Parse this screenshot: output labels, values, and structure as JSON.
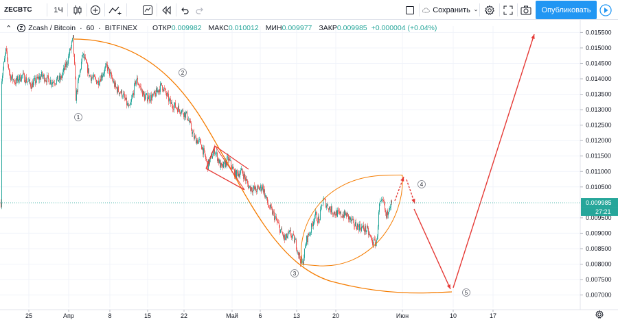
{
  "toolbar": {
    "symbol": "ZECBTC",
    "interval": "1Ч",
    "save_label": "Сохранить",
    "publish_label": "Опубликовать"
  },
  "legend": {
    "symbol_full": "Zcash / Bitcoin",
    "interval": "60",
    "exchange": "BITFINEX",
    "open_label": "ОТКР",
    "open": "0.009982",
    "high_label": "МАКС",
    "high": "0.010012",
    "low_label": "МИН",
    "low": "0.009977",
    "close_label": "ЗАКР",
    "close": "0.009985",
    "change": "+0.000004 (+0.04%)"
  },
  "price_axis": {
    "ticks": [
      "0.015500",
      "0.015000",
      "0.014500",
      "0.014000",
      "0.013500",
      "0.013000",
      "0.012500",
      "0.012000",
      "0.011500",
      "0.011000",
      "0.010500",
      "0.009500",
      "0.009000",
      "0.008500",
      "0.008000",
      "0.007500",
      "0.007000"
    ],
    "current_price": "0.009985",
    "countdown": "27:21"
  },
  "time_axis": {
    "ticks": [
      "25",
      "Апр",
      "8",
      "15",
      "22",
      "Май",
      "6",
      "13",
      "20",
      "Июн",
      "10",
      "17"
    ]
  },
  "annotations": [
    "1",
    "2",
    "3",
    "4",
    "5"
  ],
  "colors": {
    "up": "#26a69a",
    "down": "#ef5350",
    "arc": "#f57c00",
    "arrow": "#e53935",
    "publish": "#2196f3",
    "price_line": "#26a69a"
  },
  "chart_data": {
    "type": "candlestick",
    "title": "Zcash / Bitcoin · 60 · BITFINEX",
    "ylim": [
      0.0068,
      0.0158
    ],
    "x_tick_labels": [
      "25",
      "Апр",
      "8",
      "15",
      "22",
      "Май",
      "6",
      "13",
      "20",
      "Июн",
      "10",
      "17"
    ],
    "last_close": 0.009985,
    "close_path": [
      {
        "x": 2,
        "y": 0.014
      },
      {
        "x": 8,
        "y": 0.0149
      },
      {
        "x": 14,
        "y": 0.0141
      },
      {
        "x": 22,
        "y": 0.0139
      },
      {
        "x": 32,
        "y": 0.0141
      },
      {
        "x": 45,
        "y": 0.0138
      },
      {
        "x": 60,
        "y": 0.0141
      },
      {
        "x": 75,
        "y": 0.0139
      },
      {
        "x": 88,
        "y": 0.014
      },
      {
        "x": 98,
        "y": 0.0146
      },
      {
        "x": 106,
        "y": 0.0153
      },
      {
        "x": 110,
        "y": 0.0134
      },
      {
        "x": 120,
        "y": 0.0148
      },
      {
        "x": 130,
        "y": 0.0141
      },
      {
        "x": 142,
        "y": 0.0139
      },
      {
        "x": 155,
        "y": 0.0144
      },
      {
        "x": 168,
        "y": 0.0137
      },
      {
        "x": 178,
        "y": 0.0135
      },
      {
        "x": 188,
        "y": 0.013
      },
      {
        "x": 198,
        "y": 0.014
      },
      {
        "x": 210,
        "y": 0.0134
      },
      {
        "x": 222,
        "y": 0.0134
      },
      {
        "x": 235,
        "y": 0.0138
      },
      {
        "x": 248,
        "y": 0.0132
      },
      {
        "x": 262,
        "y": 0.013
      },
      {
        "x": 272,
        "y": 0.0128
      },
      {
        "x": 282,
        "y": 0.0121
      },
      {
        "x": 292,
        "y": 0.0119
      },
      {
        "x": 302,
        "y": 0.0112
      },
      {
        "x": 312,
        "y": 0.0117
      },
      {
        "x": 322,
        "y": 0.0111
      },
      {
        "x": 332,
        "y": 0.0114
      },
      {
        "x": 342,
        "y": 0.0109
      },
      {
        "x": 352,
        "y": 0.011
      },
      {
        "x": 362,
        "y": 0.0105
      },
      {
        "x": 372,
        "y": 0.0104
      },
      {
        "x": 382,
        "y": 0.0105
      },
      {
        "x": 390,
        "y": 0.0099
      },
      {
        "x": 398,
        "y": 0.0096
      },
      {
        "x": 406,
        "y": 0.0092
      },
      {
        "x": 414,
        "y": 0.0088
      },
      {
        "x": 422,
        "y": 0.009
      },
      {
        "x": 430,
        "y": 0.0087
      },
      {
        "x": 436,
        "y": 0.0082
      },
      {
        "x": 440,
        "y": 0.008
      },
      {
        "x": 446,
        "y": 0.0088
      },
      {
        "x": 452,
        "y": 0.0091
      },
      {
        "x": 458,
        "y": 0.0096
      },
      {
        "x": 464,
        "y": 0.0094
      },
      {
        "x": 470,
        "y": 0.0101
      },
      {
        "x": 476,
        "y": 0.0099
      },
      {
        "x": 484,
        "y": 0.0097
      },
      {
        "x": 494,
        "y": 0.0096
      },
      {
        "x": 504,
        "y": 0.0096
      },
      {
        "x": 514,
        "y": 0.0093
      },
      {
        "x": 524,
        "y": 0.0092
      },
      {
        "x": 534,
        "y": 0.0091
      },
      {
        "x": 542,
        "y": 0.0087
      },
      {
        "x": 548,
        "y": 0.0087
      },
      {
        "x": 552,
        "y": 0.0099
      },
      {
        "x": 558,
        "y": 0.01
      },
      {
        "x": 562,
        "y": 0.0095
      },
      {
        "x": 566,
        "y": 0.0099
      },
      {
        "x": 570,
        "y": 0.009985
      }
    ],
    "projection": [
      {
        "label": "4",
        "y": 0.01095
      },
      {
        "label": "5",
        "y": 0.0071
      },
      {
        "y": 0.0155
      }
    ]
  }
}
